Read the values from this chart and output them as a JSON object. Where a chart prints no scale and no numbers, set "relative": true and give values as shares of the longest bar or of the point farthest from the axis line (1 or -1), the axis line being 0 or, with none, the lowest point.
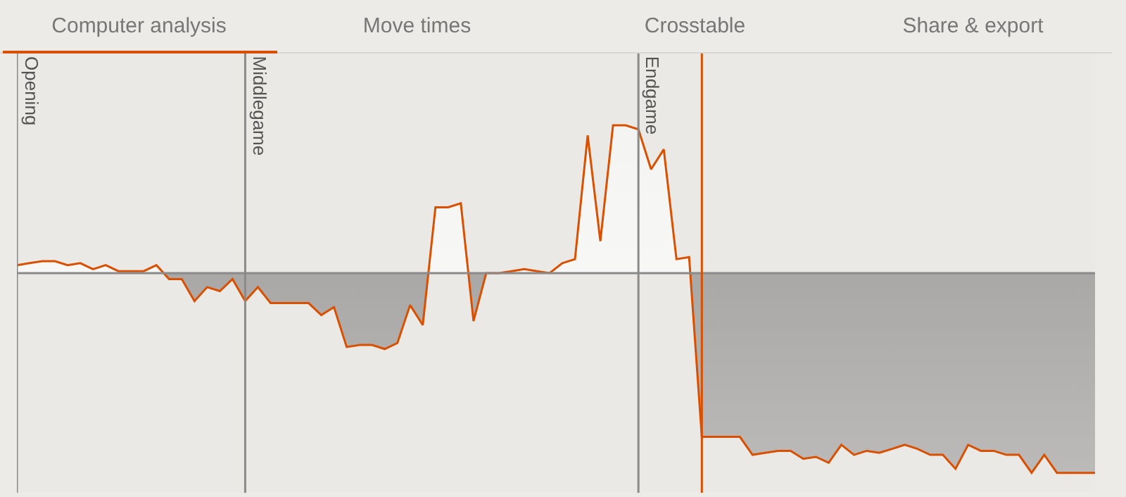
{
  "chart_data": {
    "type": "area",
    "relative": true,
    "grid": false,
    "marker": "none",
    "line_style": "solid",
    "annotations": [
      "Computer analysis",
      "Move times",
      "Crosstable",
      "Share & export"
    ],
    "categories": [
      null,
      null,
      null,
      null,
      null,
      null,
      null,
      null,
      null,
      null,
      null,
      null,
      null,
      null,
      null,
      null,
      null,
      null,
      null,
      null,
      null,
      null,
      null,
      null,
      null,
      null,
      null,
      null,
      null,
      null,
      null,
      null,
      null,
      null,
      null,
      null,
      null,
      null,
      null,
      null,
      null,
      null,
      null,
      null,
      null,
      null,
      null,
      null,
      null,
      null,
      null,
      null,
      null,
      null,
      null,
      null,
      null,
      null,
      null,
      null,
      null,
      null,
      null,
      null,
      null,
      null,
      null,
      null,
      null,
      null,
      null,
      null,
      null,
      null,
      null,
      null,
      null,
      null,
      null,
      null,
      null,
      null,
      null,
      null,
      null,
      null
    ],
    "series": [
      {
        "color": "#d85000",
        "values": [
          0.04,
          0.05,
          0.06,
          0.06,
          0.04,
          0.05,
          0.02,
          0.04,
          0.01,
          0.01,
          0.01,
          0.04,
          -0.03,
          -0.03,
          -0.14,
          -0.07,
          -0.09,
          -0.03,
          -0.14,
          -0.07,
          -0.15,
          -0.15,
          -0.15,
          -0.15,
          -0.21,
          -0.17,
          -0.37,
          -0.36,
          -0.36,
          -0.38,
          -0.35,
          -0.16,
          -0.26,
          0.33,
          0.33,
          0.35,
          -0.24,
          0,
          0,
          0.01,
          0.02,
          0.01,
          0,
          0.05,
          0.07,
          0.69,
          0.16,
          0.74,
          0.74,
          0.72,
          0.52,
          0.62,
          0.07,
          0.08,
          -0.82,
          -0.82,
          -0.82,
          -0.82,
          -0.91,
          -0.9,
          -0.89,
          -0.89,
          -0.93,
          -0.92,
          -0.95,
          -0.86,
          -0.91,
          -0.89,
          -0.9,
          -0.88,
          -0.86,
          -0.88,
          -0.91,
          -0.91,
          -0.98,
          -0.86,
          -0.89,
          -0.89,
          -0.91,
          -0.91,
          -1,
          -0.91,
          -1,
          -1,
          -1,
          -1
        ]
      }
    ],
    "ref_lines": [
      {
        "axis": "x",
        "label": "Opening",
        "color": "#8a8a8a"
      },
      {
        "axis": "x",
        "label": "Middlegame",
        "color": "#8a8a8a"
      },
      {
        "axis": "x",
        "label": "Endgame",
        "color": "#8a8a8a"
      }
    ]
  }
}
